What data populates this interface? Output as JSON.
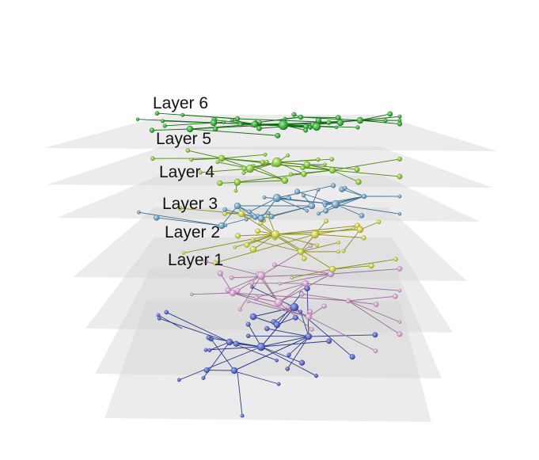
{
  "layers": [
    {
      "id": 1,
      "label": "Layer 1",
      "color": "#3b4fa8"
    },
    {
      "id": 2,
      "label": "Layer 2",
      "color": "#d9a3d3"
    },
    {
      "id": 3,
      "label": "Layer 3",
      "color": "#c9d12a"
    },
    {
      "id": 4,
      "label": "Layer 4",
      "color": "#5e9bc2"
    },
    {
      "id": 5,
      "label": "Layer 5",
      "color": "#7fc91f"
    },
    {
      "id": 6,
      "label": "Layer 6",
      "color": "#1f9a1f"
    }
  ],
  "plane_color": "#d4d4d4",
  "edge_colors": {
    "1": "#2a3a8a",
    "2": "#9a6e99",
    "3": "#8e8f1a",
    "4": "#3d6f8f",
    "5": "#4f8a13",
    "6": "#136b13"
  }
}
